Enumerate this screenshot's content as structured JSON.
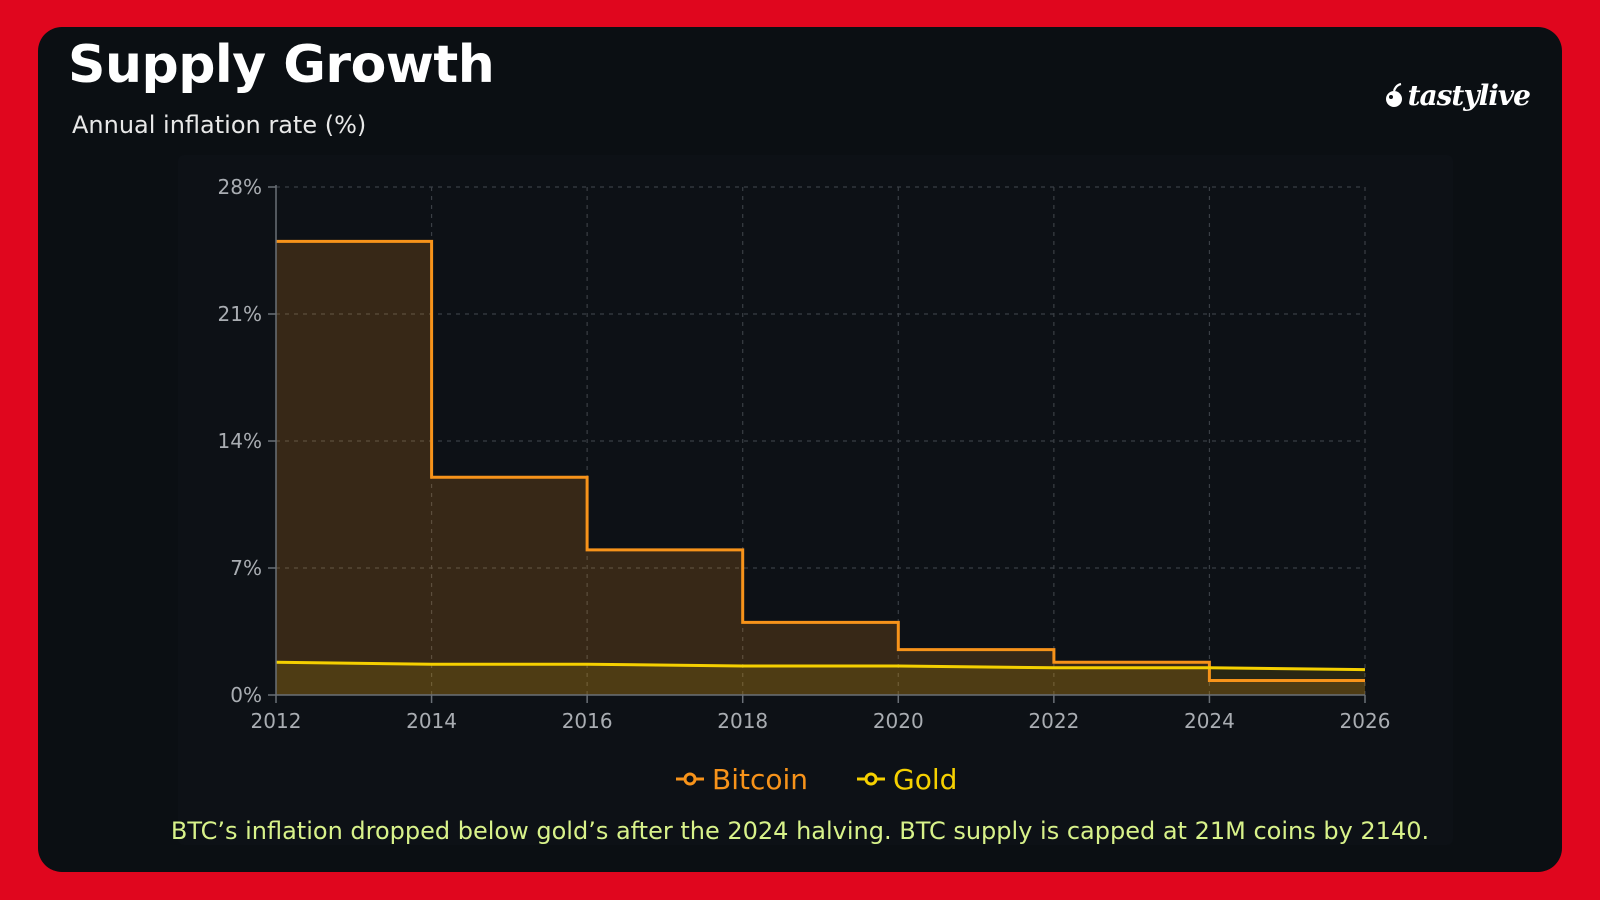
{
  "header": {
    "title": "Supply Growth",
    "subtitle": "Annual inflation rate (%)",
    "brand": "tastylive"
  },
  "caption": "BTC’s inflation dropped below gold’s after the 2024 halving. BTC supply is capped at 21M coins by 2140.",
  "colors": {
    "background": "#e0061e",
    "card": "#0b0f13",
    "bitcoin": "#f7931a",
    "gold": "#f5d000",
    "caption": "#d8f28a"
  },
  "chart_data": {
    "type": "area",
    "step": true,
    "xlim": [
      2012,
      2026
    ],
    "ylim": [
      0,
      28
    ],
    "x_ticks": [
      2012,
      2014,
      2016,
      2018,
      2020,
      2022,
      2024,
      2026
    ],
    "x_tick_labels": [
      "2012",
      "2014",
      "2016",
      "2018",
      "2020",
      "2022",
      "2024",
      "2026"
    ],
    "y_ticks": [
      0,
      7,
      14,
      21,
      28
    ],
    "y_tick_labels": [
      "0%",
      "7%",
      "14%",
      "21%",
      "28%"
    ],
    "grid": true,
    "legend_position": "bottom-center",
    "series": [
      {
        "name": "Bitcoin",
        "color": "#f7931a",
        "shape": "step",
        "x": [
          2012,
          2014,
          2016,
          2018,
          2020,
          2022,
          2024,
          2026
        ],
        "values": [
          25,
          12,
          8,
          4,
          2.5,
          1.8,
          0.8,
          0.8
        ]
      },
      {
        "name": "Gold",
        "color": "#f5d000",
        "shape": "line",
        "x": [
          2012,
          2014,
          2016,
          2018,
          2020,
          2022,
          2024,
          2026
        ],
        "values": [
          1.8,
          1.7,
          1.7,
          1.6,
          1.6,
          1.5,
          1.5,
          1.4
        ]
      }
    ]
  }
}
